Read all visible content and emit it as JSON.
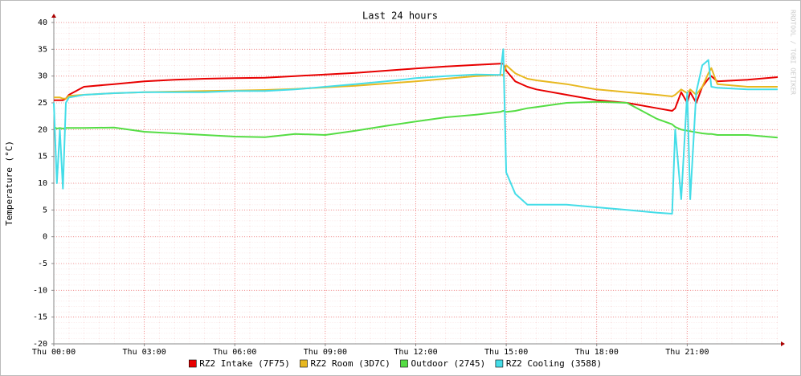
{
  "chart_data": {
    "type": "line",
    "title": "Last 24 hours",
    "y_label": "Temperature (°C)",
    "watermark": "RRDTOOL / TOBI OETIKER",
    "x": [
      0,
      0.1,
      0.2,
      0.3,
      0.4,
      0.5,
      1,
      2,
      3,
      4,
      5,
      6,
      7,
      8,
      9,
      10,
      11,
      12,
      13,
      14,
      14.8,
      14.9,
      15,
      15.3,
      15.7,
      16,
      17,
      18,
      19,
      20,
      20.5,
      20.6,
      20.8,
      21,
      21.1,
      21.3,
      21.5,
      21.7,
      21.8,
      22,
      23,
      24
    ],
    "series": [
      {
        "name": "RZ2 Intake (7F75)",
        "color": "#e80000",
        "values": [
          25.5,
          25.5,
          25.5,
          25.5,
          25.8,
          26.5,
          28,
          28.5,
          29,
          29.3,
          29.5,
          29.6,
          29.7,
          30,
          30.3,
          30.6,
          31,
          31.4,
          31.8,
          32.1,
          32.3,
          32.3,
          31,
          29,
          28,
          27.5,
          26.5,
          25.5,
          25,
          24,
          23.5,
          24,
          27,
          25,
          27,
          25,
          28,
          29.5,
          30,
          29,
          29.3,
          29.8
        ]
      },
      {
        "name": "RZ2 Room (3D7C)",
        "color": "#e8b820",
        "values": [
          26,
          26,
          26,
          25.8,
          25.8,
          26.3,
          26.5,
          26.8,
          27,
          27.1,
          27.2,
          27.3,
          27.4,
          27.6,
          27.9,
          28.2,
          28.6,
          29,
          29.5,
          30,
          30.2,
          30.2,
          32,
          30.5,
          29.5,
          29.2,
          28.5,
          27.5,
          27,
          26.5,
          26.2,
          26.5,
          27.5,
          26.8,
          27.5,
          26.5,
          28,
          30.5,
          31.5,
          28.5,
          28,
          28
        ]
      },
      {
        "name": "Outdoor (2745)",
        "color": "#55dd44",
        "values": [
          20.5,
          20.2,
          20.3,
          20.2,
          20.3,
          20.3,
          20.3,
          20.4,
          19.6,
          19.3,
          19,
          18.7,
          18.6,
          19.2,
          19,
          19.8,
          20.7,
          21.5,
          22.3,
          22.8,
          23.3,
          23.5,
          23.3,
          23.5,
          24,
          24.2,
          25,
          25.2,
          25,
          22,
          21,
          20.5,
          20,
          19.8,
          19.7,
          19.5,
          19.3,
          19.2,
          19.2,
          19,
          19,
          18.5
        ]
      },
      {
        "name": "RZ2 Cooling (3588)",
        "color": "#44dde8",
        "values": [
          25,
          10,
          20,
          9,
          25,
          26,
          26.5,
          26.8,
          27,
          27,
          27,
          27.2,
          27.2,
          27.5,
          28,
          28.5,
          29,
          29.6,
          30,
          30.3,
          30.2,
          35,
          12,
          8,
          6,
          6,
          6,
          5.5,
          5,
          4.5,
          4.3,
          20,
          7,
          27,
          7,
          27,
          32,
          33,
          28,
          27.8,
          27.5,
          27.5
        ]
      }
    ],
    "xlim": [
      0,
      24
    ],
    "xticks": [
      {
        "value": 0,
        "label": "Thu 00:00"
      },
      {
        "value": 3,
        "label": "Thu 03:00"
      },
      {
        "value": 6,
        "label": "Thu 06:00"
      },
      {
        "value": 9,
        "label": "Thu 09:00"
      },
      {
        "value": 12,
        "label": "Thu 12:00"
      },
      {
        "value": 15,
        "label": "Thu 15:00"
      },
      {
        "value": 18,
        "label": "Thu 18:00"
      },
      {
        "value": 21,
        "label": "Thu 21:00"
      }
    ],
    "ylim": [
      -20,
      40
    ],
    "yticks": [
      -20,
      -15,
      -10,
      -5,
      0,
      5,
      10,
      15,
      20,
      25,
      30,
      35,
      40
    ],
    "grid": true,
    "legend": "bottom"
  }
}
